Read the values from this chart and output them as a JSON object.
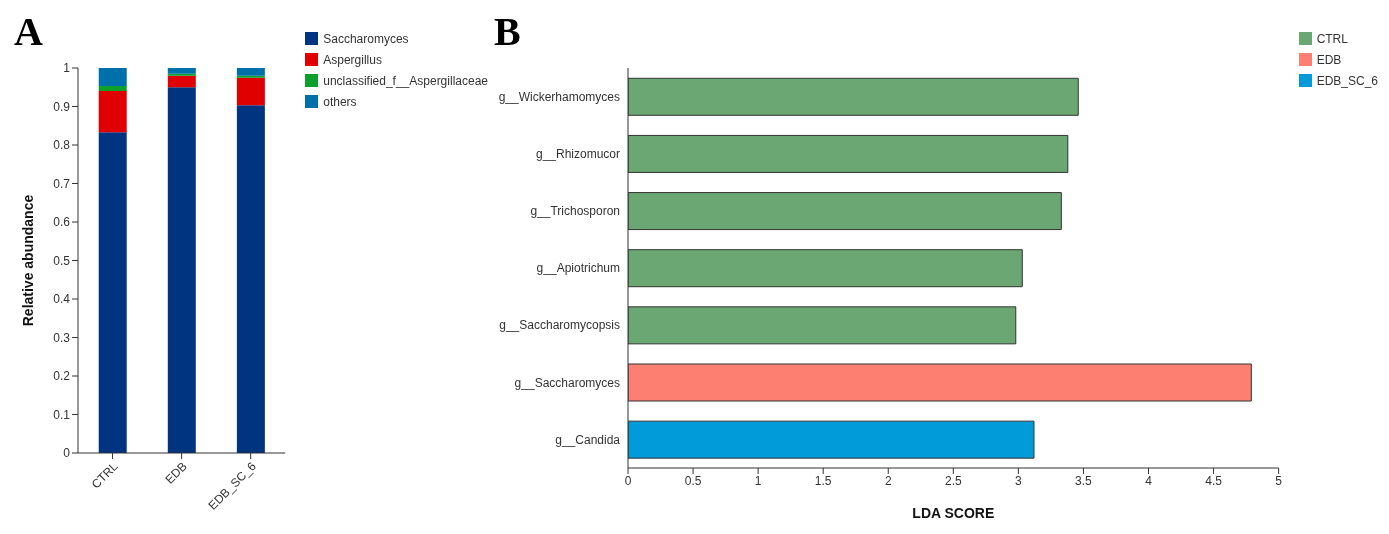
{
  "chart_data": [
    {
      "type": "bar",
      "title": "A",
      "ylabel": "Relative abundance",
      "categories": [
        "CTRL",
        "EDB",
        "EDB_SC_6"
      ],
      "stacked": true,
      "ylim": [
        0,
        1
      ],
      "yticks": [
        0,
        0.1,
        0.2,
        0.3,
        0.4,
        0.5,
        0.6,
        0.7,
        0.8,
        0.9,
        1
      ],
      "grid": false,
      "legend": "top right",
      "series": [
        {
          "name": "Saccharomyces",
          "color": "#003380",
          "values": [
            0.833,
            0.95,
            0.903
          ]
        },
        {
          "name": "Aspergillus",
          "color": "#e00000",
          "values": [
            0.107,
            0.03,
            0.072
          ]
        },
        {
          "name": "unclassified_f__Aspergillaceae",
          "color": "#0da02a",
          "values": [
            0.013,
            0.005,
            0.005
          ]
        },
        {
          "name": "others",
          "color": "#0070aa",
          "values": [
            0.047,
            0.015,
            0.02
          ]
        }
      ]
    },
    {
      "type": "bar",
      "title": "B",
      "orientation": "horizontal",
      "xlabel": "LDA SCORE",
      "categories": [
        "g__Wickerhamomyces",
        "g__Rhizomucor",
        "g__Trichosporon",
        "g__Apiotrichum",
        "g__Saccharomycopsis",
        "g__Saccharomyces",
        "g__Candida"
      ],
      "stacked": true,
      "xlim": [
        0,
        5
      ],
      "xticks": [
        0,
        0.5,
        1,
        1.5,
        2,
        2.5,
        3,
        3.5,
        4,
        4.5,
        5
      ],
      "grid": false,
      "legend": "top right",
      "series": [
        {
          "name": "CTRL",
          "color": "#6aa772",
          "values": [
            3.46,
            3.38,
            3.33,
            3.03,
            2.98,
            null,
            null
          ]
        },
        {
          "name": "EDB",
          "color": "#fd7f72",
          "values": [
            null,
            null,
            null,
            null,
            null,
            4.79,
            null
          ]
        },
        {
          "name": "EDB_SC_6",
          "color": "#009bd8",
          "values": [
            null,
            null,
            null,
            null,
            null,
            null,
            3.12
          ]
        }
      ]
    }
  ]
}
